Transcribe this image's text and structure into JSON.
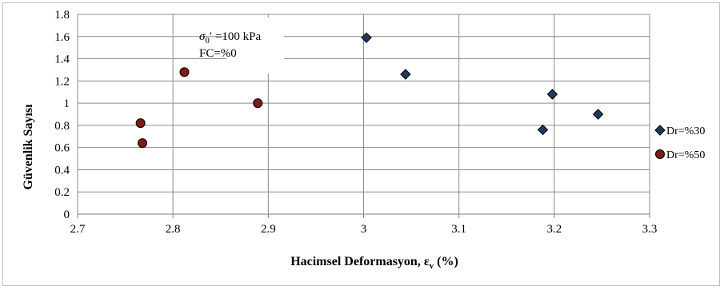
{
  "chart_data": {
    "type": "scatter",
    "xlabel": "Hacimsel Deformasyon, ε",
    "xlabel_sub": "v",
    "xlabel_unit": " (%)",
    "ylabel": "Güvenlik Sayısı",
    "xlim": [
      2.7,
      3.3
    ],
    "ylim": [
      0,
      1.8
    ],
    "x_ticks": [
      "2.7",
      "2.8",
      "2.9",
      "3",
      "3.1",
      "3.2",
      "3.3"
    ],
    "y_ticks": [
      "0",
      "0.2",
      "0.4",
      "0.6",
      "0.8",
      "1",
      "1.2",
      "1.4",
      "1.6",
      "1.8"
    ],
    "grid": true,
    "legend_position": "right",
    "annotations": {
      "line1_symbol": "σ",
      "line1_sub": "0",
      "line1_rest": "′ =100 kPa",
      "line2": "FC=%0"
    },
    "series": [
      {
        "name": "Dr=%30",
        "marker": "diamond",
        "color": "#1f3a5f",
        "points": [
          {
            "x": 3.003,
            "y": 1.59
          },
          {
            "x": 3.044,
            "y": 1.26
          },
          {
            "x": 3.198,
            "y": 1.08
          },
          {
            "x": 3.246,
            "y": 0.9
          },
          {
            "x": 3.188,
            "y": 0.76
          }
        ]
      },
      {
        "name": "Dr=%50",
        "marker": "circle",
        "color": "#7a1c12",
        "points": [
          {
            "x": 2.812,
            "y": 1.28
          },
          {
            "x": 2.889,
            "y": 1.0
          },
          {
            "x": 2.766,
            "y": 0.82
          },
          {
            "x": 2.768,
            "y": 0.64
          }
        ]
      }
    ]
  }
}
